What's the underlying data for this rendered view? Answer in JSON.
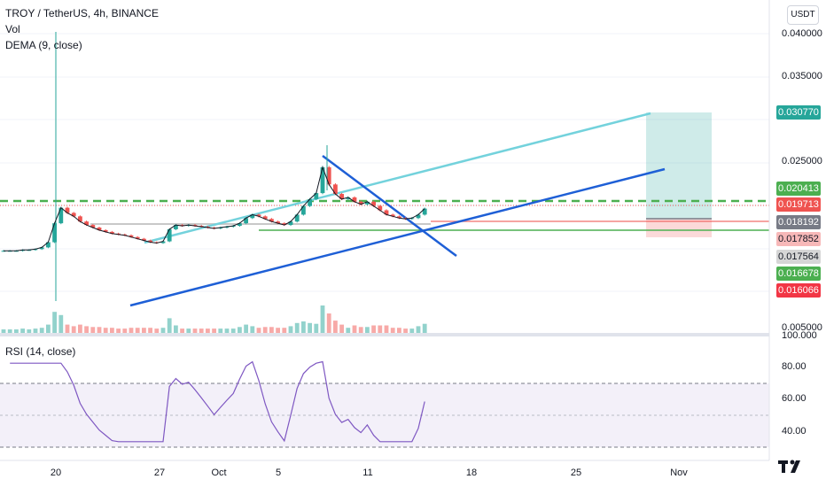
{
  "legend": {
    "symbol": "TROY / TetherUS, 4h, BINANCE",
    "vol": "Vol",
    "dema": "DEMA (9, close)",
    "rsi": "RSI (14, close)"
  },
  "currency_button": "USDT",
  "price_axis": {
    "ticks": [
      "0.040000",
      "0.035000",
      "0.025000",
      "0.005000",
      "100.000"
    ],
    "labels": [
      {
        "text": "0.030770",
        "bg": "#26a69a",
        "fg": "#ffffff"
      },
      {
        "text": "0.020413",
        "bg": "#4caf50",
        "fg": "#ffffff"
      },
      {
        "text": "0.019713",
        "bg": "#ef5350",
        "fg": "#ffffff"
      },
      {
        "text": "0.018192",
        "bg": "#787b86",
        "fg": "#ffffff"
      },
      {
        "text": "0.017852",
        "bg": "#f7b8b8",
        "fg": "#131722"
      },
      {
        "text": "0.017564",
        "bg": "#d6d6d6",
        "fg": "#131722"
      },
      {
        "text": "0.016678",
        "bg": "#4caf50",
        "fg": "#ffffff"
      },
      {
        "text": "0.016066",
        "bg": "#f23645",
        "fg": "#ffffff"
      }
    ]
  },
  "rsi_axis": {
    "ticks": [
      "80.00",
      "60.00",
      "40.00"
    ]
  },
  "date_axis": {
    "labels": [
      "20",
      "27",
      "Oct",
      "5",
      "11",
      "18",
      "25",
      "Nov"
    ]
  },
  "colors": {
    "up": "#26a69a",
    "down": "#ef5350",
    "trend_blue": "#1e5fd6",
    "trend_cyan": "#73d2dc",
    "rsi": "#7e57c2"
  },
  "chart_data": {
    "type": "candlestick",
    "symbol": "TROY / TetherUS",
    "interval": "4h",
    "exchange": "BINANCE",
    "price_range": [
      0.005,
      0.04
    ],
    "rsi_range": [
      30,
      100
    ],
    "last_price": 0.019713,
    "rsi_levels": [
      70,
      50,
      30
    ],
    "close_series": [
      0.0148,
      0.0148,
      0.0148,
      0.0149,
      0.0149,
      0.015,
      0.0152,
      0.0158,
      0.018,
      0.0198,
      0.0192,
      0.0188,
      0.0182,
      0.0178,
      0.0175,
      0.0172,
      0.017,
      0.0168,
      0.0167,
      0.0166,
      0.0164,
      0.0162,
      0.016,
      0.0158,
      0.0157,
      0.0159,
      0.0173,
      0.0178,
      0.0177,
      0.0178,
      0.0177,
      0.0176,
      0.0175,
      0.0174,
      0.0175,
      0.0176,
      0.0177,
      0.018,
      0.0186,
      0.019,
      0.0188,
      0.0185,
      0.0182,
      0.018,
      0.0178,
      0.0182,
      0.019,
      0.02,
      0.0208,
      0.0215,
      0.0245,
      0.0225,
      0.0214,
      0.0208,
      0.021,
      0.0205,
      0.0202,
      0.0205,
      0.02,
      0.0195,
      0.019,
      0.0188,
      0.0186,
      0.0185,
      0.0186,
      0.019,
      0.0197
    ]
  }
}
